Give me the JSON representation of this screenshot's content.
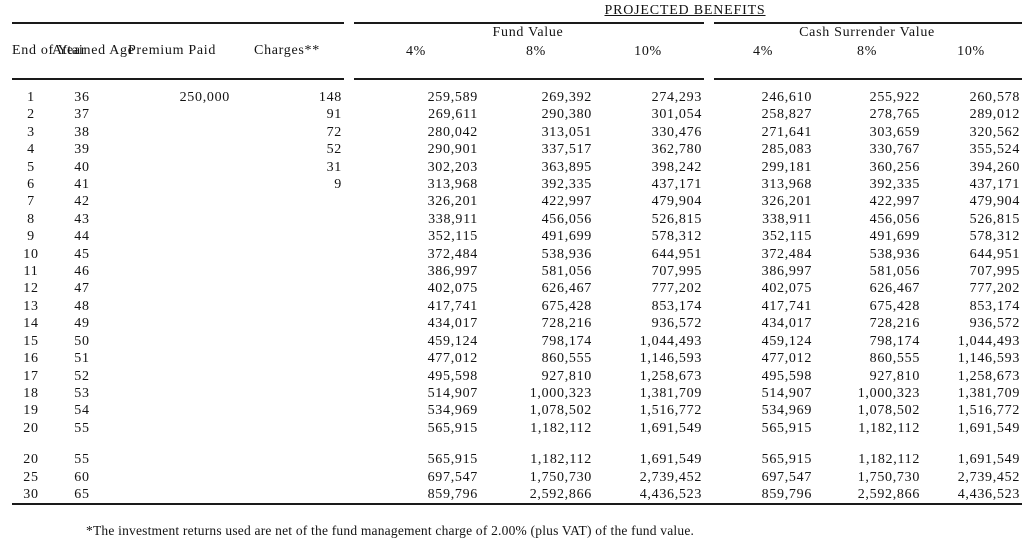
{
  "title": "PROJECTED BENEFITS",
  "table": {
    "column_headers": {
      "end_of_year": "End\nof\nYear",
      "attained_age": "Attained\nAge",
      "premium_paid": "Premium\nPaid",
      "charges": "Charges**",
      "fund_value_group": "Fund Value",
      "cash_surrender_group": "Cash Surrender Value",
      "rates": [
        "4%",
        "8%",
        "10%"
      ]
    },
    "rows": [
      [
        "1",
        "36",
        "250,000",
        "148",
        "259,589",
        "269,392",
        "274,293",
        "246,610",
        "255,922",
        "260,578"
      ],
      [
        "2",
        "37",
        "",
        "91",
        "269,611",
        "290,380",
        "301,054",
        "258,827",
        "278,765",
        "289,012"
      ],
      [
        "3",
        "38",
        "",
        "72",
        "280,042",
        "313,051",
        "330,476",
        "271,641",
        "303,659",
        "320,562"
      ],
      [
        "4",
        "39",
        "",
        "52",
        "290,901",
        "337,517",
        "362,780",
        "285,083",
        "330,767",
        "355,524"
      ],
      [
        "5",
        "40",
        "",
        "31",
        "302,203",
        "363,895",
        "398,242",
        "299,181",
        "360,256",
        "394,260"
      ],
      [
        "6",
        "41",
        "",
        "9",
        "313,968",
        "392,335",
        "437,171",
        "313,968",
        "392,335",
        "437,171"
      ],
      [
        "7",
        "42",
        "",
        "",
        "326,201",
        "422,997",
        "479,904",
        "326,201",
        "422,997",
        "479,904"
      ],
      [
        "8",
        "43",
        "",
        "",
        "338,911",
        "456,056",
        "526,815",
        "338,911",
        "456,056",
        "526,815"
      ],
      [
        "9",
        "44",
        "",
        "",
        "352,115",
        "491,699",
        "578,312",
        "352,115",
        "491,699",
        "578,312"
      ],
      [
        "10",
        "45",
        "",
        "",
        "372,484",
        "538,936",
        "644,951",
        "372,484",
        "538,936",
        "644,951"
      ],
      [
        "11",
        "46",
        "",
        "",
        "386,997",
        "581,056",
        "707,995",
        "386,997",
        "581,056",
        "707,995"
      ],
      [
        "12",
        "47",
        "",
        "",
        "402,075",
        "626,467",
        "777,202",
        "402,075",
        "626,467",
        "777,202"
      ],
      [
        "13",
        "48",
        "",
        "",
        "417,741",
        "675,428",
        "853,174",
        "417,741",
        "675,428",
        "853,174"
      ],
      [
        "14",
        "49",
        "",
        "",
        "434,017",
        "728,216",
        "936,572",
        "434,017",
        "728,216",
        "936,572"
      ],
      [
        "15",
        "50",
        "",
        "",
        "459,124",
        "798,174",
        "1,044,493",
        "459,124",
        "798,174",
        "1,044,493"
      ],
      [
        "16",
        "51",
        "",
        "",
        "477,012",
        "860,555",
        "1,146,593",
        "477,012",
        "860,555",
        "1,146,593"
      ],
      [
        "17",
        "52",
        "",
        "",
        "495,598",
        "927,810",
        "1,258,673",
        "495,598",
        "927,810",
        "1,258,673"
      ],
      [
        "18",
        "53",
        "",
        "",
        "514,907",
        "1,000,323",
        "1,381,709",
        "514,907",
        "1,000,323",
        "1,381,709"
      ],
      [
        "19",
        "54",
        "",
        "",
        "534,969",
        "1,078,502",
        "1,516,772",
        "534,969",
        "1,078,502",
        "1,516,772"
      ],
      [
        "20",
        "55",
        "",
        "",
        "565,915",
        "1,182,112",
        "1,691,549",
        "565,915",
        "1,182,112",
        "1,691,549"
      ]
    ],
    "summary_rows": [
      [
        "20",
        "55",
        "",
        "",
        "565,915",
        "1,182,112",
        "1,691,549",
        "565,915",
        "1,182,112",
        "1,691,549"
      ],
      [
        "25",
        "60",
        "",
        "",
        "697,547",
        "1,750,730",
        "2,739,452",
        "697,547",
        "1,750,730",
        "2,739,452"
      ],
      [
        "30",
        "65",
        "",
        "",
        "859,796",
        "2,592,866",
        "4,436,523",
        "859,796",
        "2,592,866",
        "4,436,523"
      ]
    ]
  },
  "footnote": "*The investment returns used are net of the fund management charge of 2.00% (plus VAT) of the fund value."
}
